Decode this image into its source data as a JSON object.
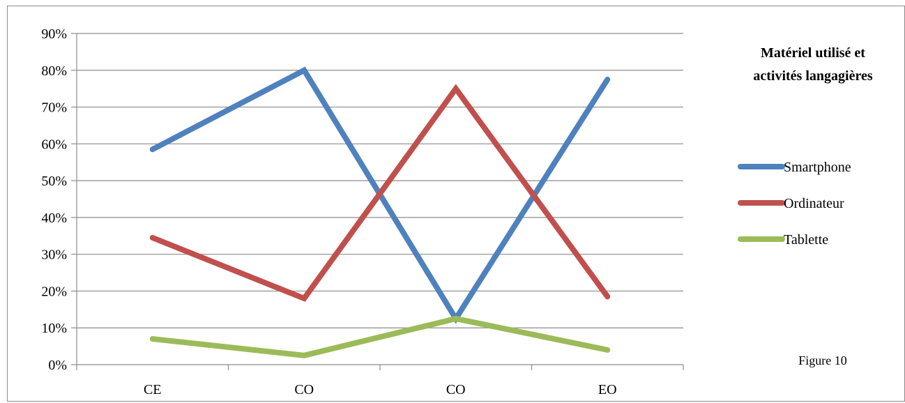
{
  "chart_data": {
    "type": "line",
    "title": [
      "Matériel utilisé et",
      "activités langagières"
    ],
    "caption": "Figure 10",
    "categories": [
      "CE",
      "CO",
      "CO",
      "EO"
    ],
    "ylim": [
      0,
      90
    ],
    "yticks": [
      0,
      10,
      20,
      30,
      40,
      50,
      60,
      70,
      80,
      90
    ],
    "ytick_labels": [
      "0%",
      "10%",
      "20%",
      "30%",
      "40%",
      "50%",
      "60%",
      "70%",
      "80%",
      "90%"
    ],
    "grid": true,
    "legend_position": "right",
    "series": [
      {
        "name": "Smartphone",
        "color": "#4f81bd",
        "values": [
          58.5,
          80,
          12.5,
          77.5
        ]
      },
      {
        "name": "Ordinateur",
        "color": "#c0504d",
        "values": [
          34.5,
          18,
          75,
          18.5
        ]
      },
      {
        "name": "Tablette",
        "color": "#9bbb59",
        "values": [
          7,
          2.5,
          12.5,
          4
        ]
      }
    ]
  }
}
